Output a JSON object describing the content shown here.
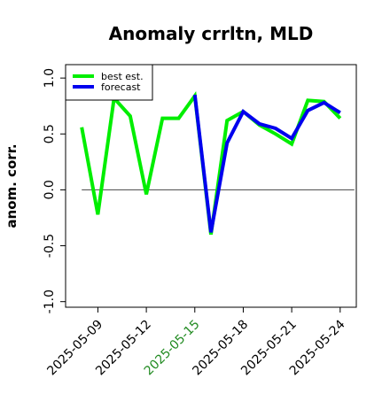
{
  "chart_data": {
    "type": "line",
    "title": "Anomaly crrltn, MLD",
    "xlabel": "",
    "ylabel": "anom. corr.",
    "x": [
      "2025-05-08",
      "2025-05-09",
      "2025-05-10",
      "2025-05-11",
      "2025-05-12",
      "2025-05-13",
      "2025-05-14",
      "2025-05-15",
      "2025-05-16",
      "2025-05-17",
      "2025-05-18",
      "2025-05-19",
      "2025-05-20",
      "2025-05-21",
      "2025-05-22",
      "2025-05-23",
      "2025-05-24"
    ],
    "x_ticks": [
      "2025-05-09",
      "2025-05-12",
      "2025-05-15",
      "2025-05-18",
      "2025-05-21",
      "2025-05-24"
    ],
    "highlight_tick": "2025-05-15",
    "xlim": [
      "2025-05-07",
      "2025-05-25"
    ],
    "ylim": [
      -1.05,
      1.12
    ],
    "y_ticks": [
      -1.0,
      -0.5,
      0.0,
      0.5,
      1.0
    ],
    "y_tick_labels": [
      "-1.0",
      "-0.5",
      "0.0",
      "0.5",
      "1.0"
    ],
    "zero_line": true,
    "grid": false,
    "legend_position": "top-left",
    "series": [
      {
        "name": "best est.",
        "color": "#00ee00",
        "values": [
          0.56,
          -0.22,
          0.82,
          0.66,
          -0.04,
          0.64,
          0.64,
          0.84,
          -0.4,
          0.62,
          0.7,
          0.58,
          0.5,
          0.41,
          0.8,
          0.79,
          0.64
        ]
      },
      {
        "name": "forecast",
        "color": "#0000ee",
        "values": [
          null,
          null,
          null,
          null,
          null,
          null,
          null,
          0.85,
          -0.38,
          0.42,
          0.7,
          0.59,
          0.55,
          0.46,
          0.71,
          0.78,
          0.69
        ]
      }
    ],
    "colors": {
      "axis": "#000000",
      "zero_line": "#444444",
      "highlight_tick": "#228b22"
    }
  }
}
